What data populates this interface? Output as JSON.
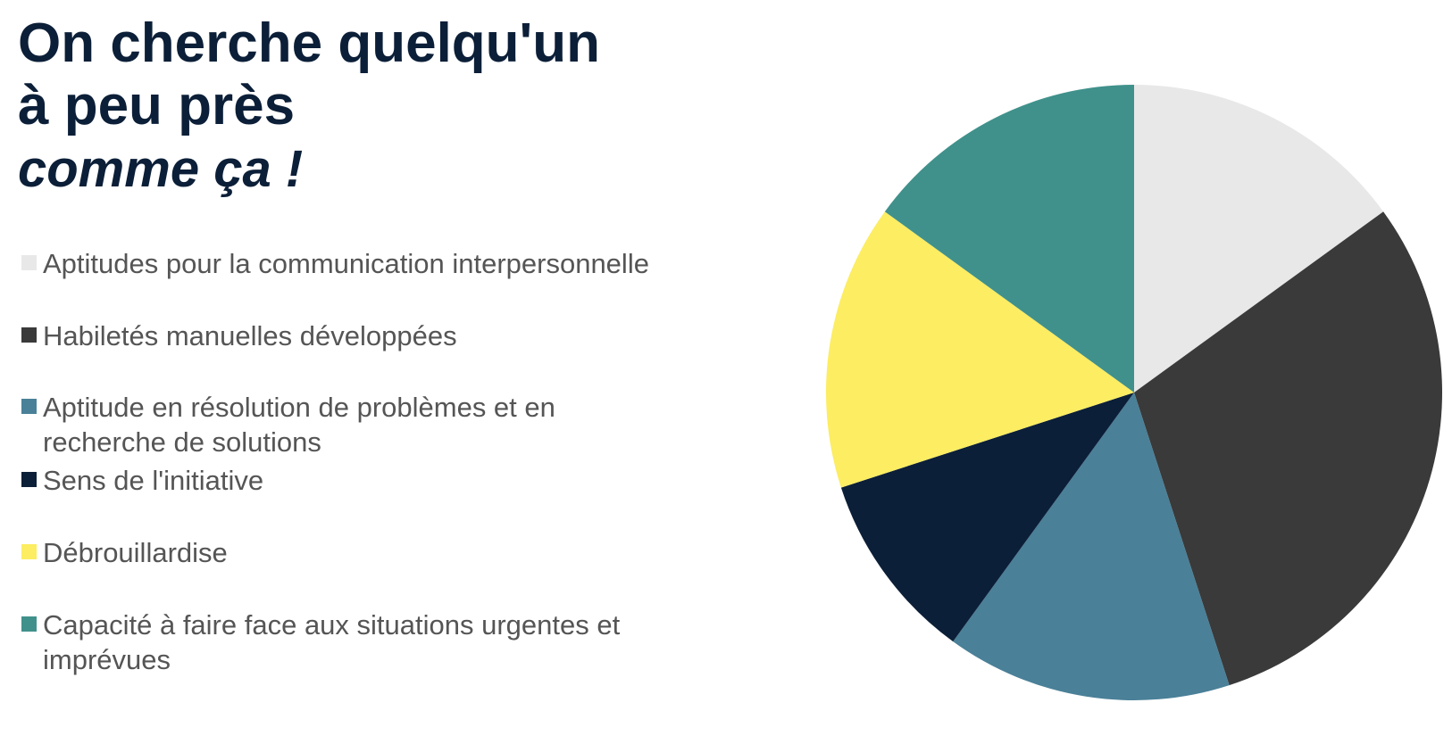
{
  "title": {
    "line1": "On cherche quelqu'un",
    "line2": "à peu près",
    "line3": "comme ça !"
  },
  "chart_data": {
    "type": "pie",
    "title": "On cherche quelqu'un à peu près comme ça !",
    "legend_position": "left",
    "start_angle_deg": 0,
    "direction": "clockwise",
    "slices": [
      {
        "label": "Aptitudes pour la communication interpersonnelle",
        "value": 15,
        "color": "#e8e8e8"
      },
      {
        "label": "Habiletés manuelles développées",
        "value": 30,
        "color": "#3a3a3a"
      },
      {
        "label": "Aptitude en résolution de problèmes et en recherche de solutions",
        "value": 15,
        "color": "#4a8098"
      },
      {
        "label": "Sens de l'initiative",
        "value": 10,
        "color": "#0c1f38"
      },
      {
        "label": "Débrouillardise",
        "value": 15,
        "color": "#fced62"
      },
      {
        "label": "Capacité à faire face aux situations urgentes et imprévues",
        "value": 15,
        "color": "#40918b"
      }
    ]
  }
}
